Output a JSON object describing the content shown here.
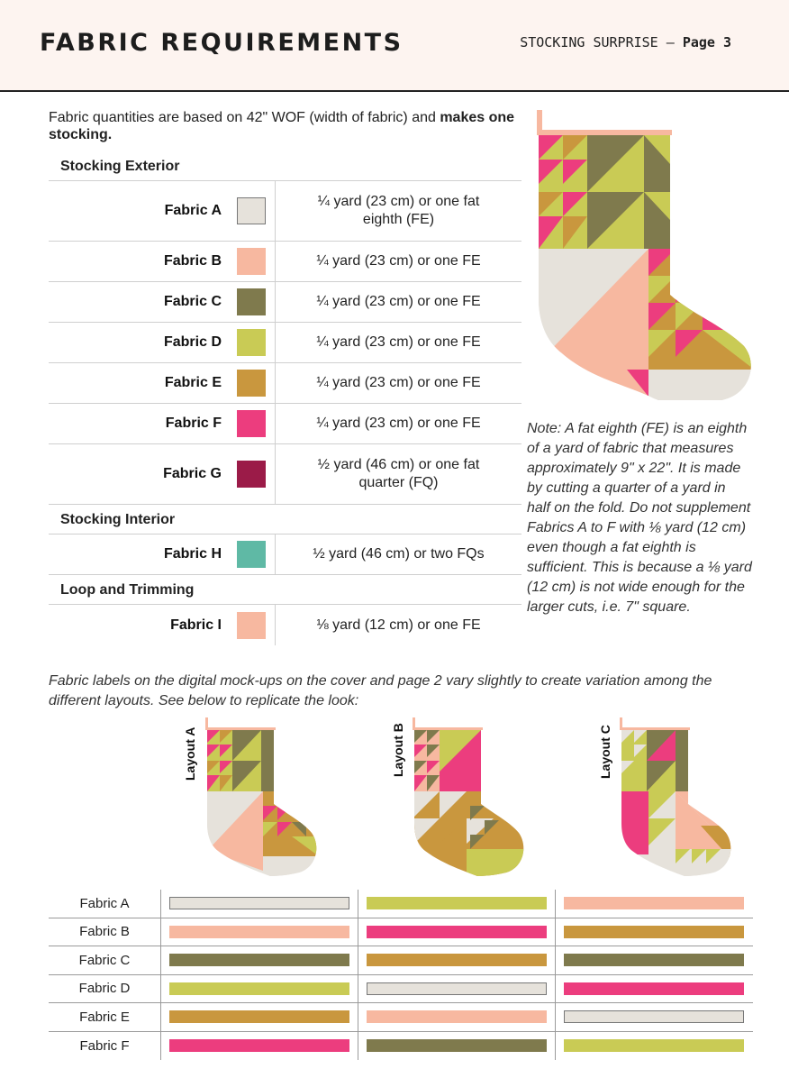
{
  "header": {
    "title": "FABRIC REQUIREMENTS",
    "subtitle": "STOCKING SURPRISE —",
    "page": "Page 3"
  },
  "intro": {
    "text": "Fabric quantities are based on 42\" WOF (width of fabric) and ",
    "bold": "makes one stocking."
  },
  "sections": {
    "exterior": "Stocking Exterior",
    "interior": "Stocking Interior",
    "loop": "Loop and Trimming"
  },
  "fabrics": [
    {
      "name": "Fabric A",
      "color": "#e6e2db",
      "qty": "¼ yard (23 cm) or one fat eighth (FE)"
    },
    {
      "name": "Fabric B",
      "color": "#f7b8a0",
      "qty": "¼ yard (23 cm) or one FE"
    },
    {
      "name": "Fabric C",
      "color": "#7f7a4d",
      "qty": "¼ yard (23 cm) or one FE"
    },
    {
      "name": "Fabric D",
      "color": "#c9cb55",
      "qty": "¼ yard (23 cm) or one FE"
    },
    {
      "name": "Fabric E",
      "color": "#c9973e",
      "qty": "¼ yard (23 cm) or one FE"
    },
    {
      "name": "Fabric F",
      "color": "#ec3d7e",
      "qty": "¼ yard (23 cm) or one FE"
    },
    {
      "name": "Fabric G",
      "color": "#9b1b48",
      "qty": "½ yard (46 cm) or one fat quarter (FQ)"
    },
    {
      "name": "Fabric H",
      "color": "#5fb9a5",
      "qty": "½ yard (46 cm) or two FQs"
    },
    {
      "name": "Fabric I",
      "color": "#f7b8a0",
      "qty": "⅛ yard (12 cm) or one FE"
    }
  ],
  "note": "Note: A fat eighth (FE) is an eighth of a yard of fabric that measures approximately 9\" x 22\". It is made by cutting a quarter of a yard in half on the fold. Do not supplement Fabrics A to F with ⅛ yard (12 cm) even though a fat eighth is sufficient. This is because a ⅛ yard (12 cm) is not wide enough for the larger cuts, i.e. 7\" square.",
  "caption": "Fabric labels on the digital mock-ups on the cover and page 2 vary slightly to create variation among the different layouts. See below to replicate the look:",
  "layouts": [
    {
      "label": "Layout A",
      "colors": [
        "#e6e2db",
        "#f7b8a0",
        "#7f7a4d",
        "#c9cb55",
        "#c9973e",
        "#ec3d7e"
      ]
    },
    {
      "label": "Layout B",
      "colors": [
        "#c9cb55",
        "#ec3d7e",
        "#c9973e",
        "#e6e2db",
        "#f7b8a0",
        "#7f7a4d"
      ]
    },
    {
      "label": "Layout C",
      "colors": [
        "#f7b8a0",
        "#c9973e",
        "#7f7a4d",
        "#ec3d7e",
        "#e6e2db",
        "#c9cb55"
      ]
    }
  ],
  "layout_rows": [
    "Fabric A",
    "Fabric B",
    "Fabric C",
    "Fabric D",
    "Fabric E",
    "Fabric F"
  ]
}
